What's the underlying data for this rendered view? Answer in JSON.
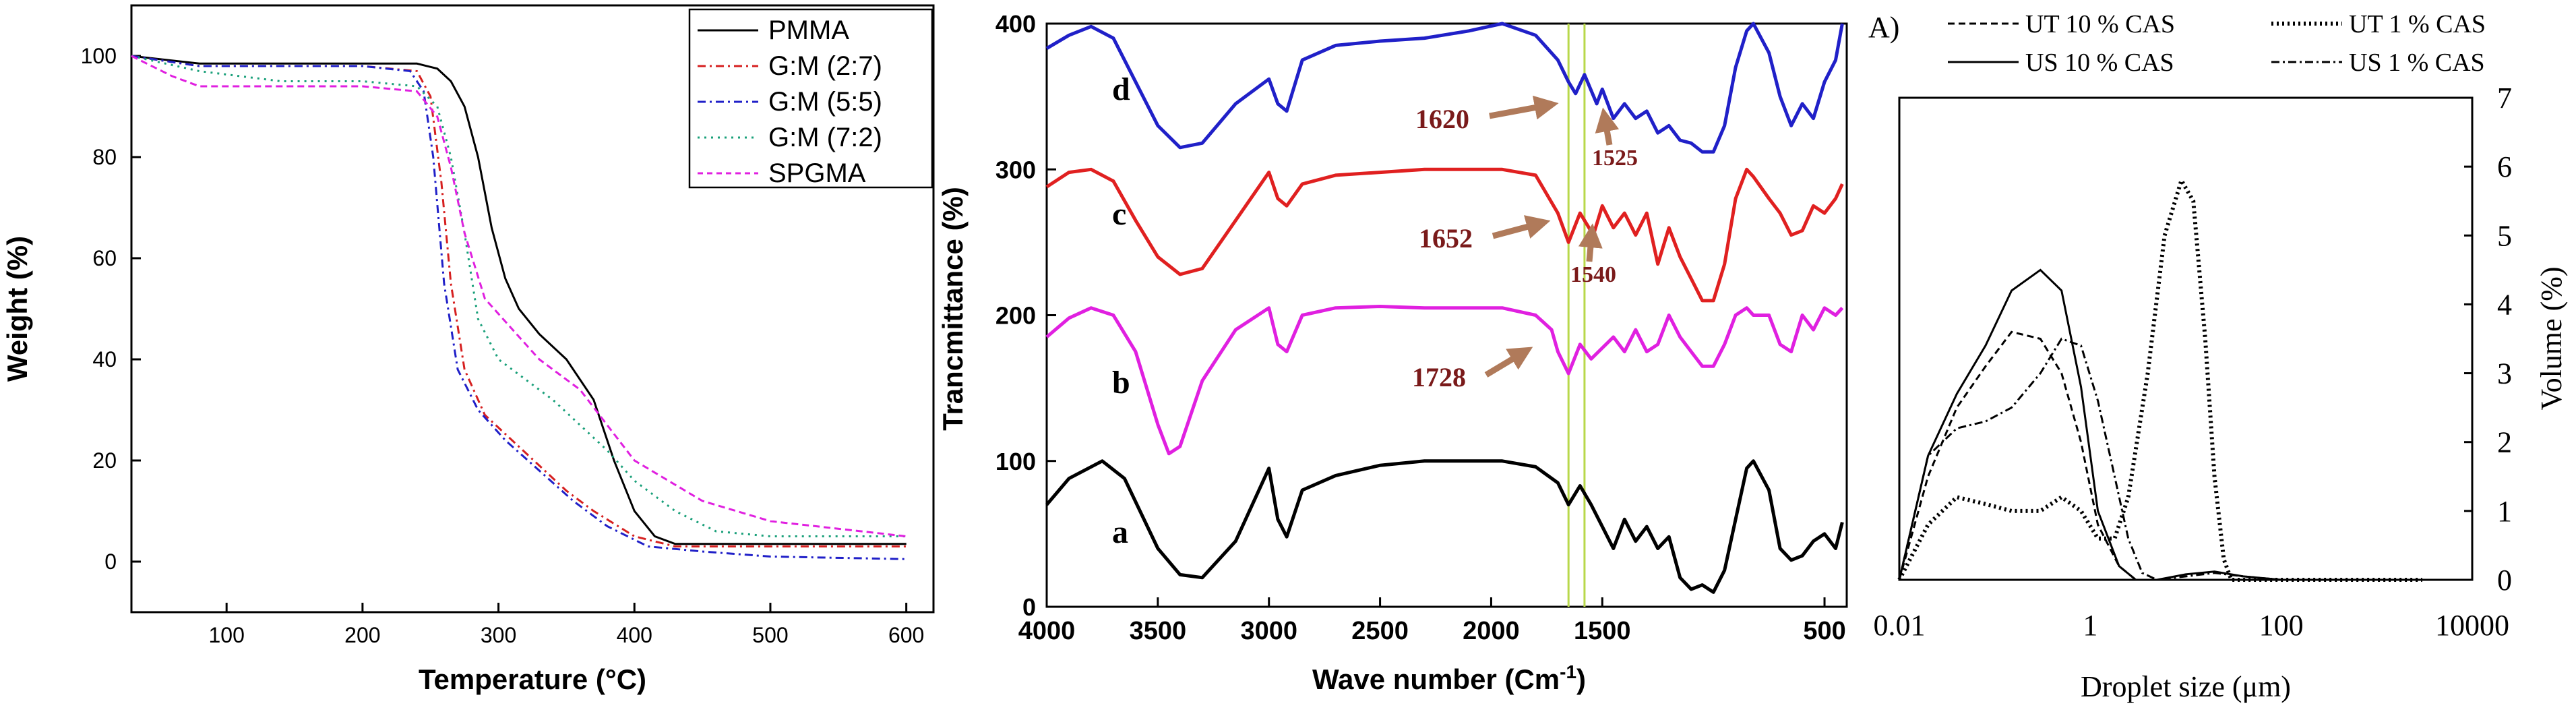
{
  "chart_data": [
    {
      "type": "line",
      "xlabel": "Temperature (°C)",
      "ylabel": "Weight (%)",
      "xlim": [
        30,
        620
      ],
      "ylim": [
        -10,
        110
      ],
      "xticks": [
        100,
        200,
        300,
        400,
        500,
        600
      ],
      "yticks": [
        0,
        20,
        40,
        60,
        80,
        100
      ],
      "legend_position": "top-right",
      "series": [
        {
          "name": "PMMA",
          "color": "#000000",
          "dash": "solid",
          "x": [
            30,
            80,
            150,
            200,
            240,
            255,
            265,
            275,
            285,
            295,
            305,
            315,
            330,
            350,
            370,
            385,
            400,
            415,
            430,
            500,
            600
          ],
          "y": [
            100,
            98.5,
            98.5,
            98.5,
            98.5,
            97.5,
            95,
            90,
            80,
            66,
            56,
            50,
            45,
            40,
            32,
            20,
            10,
            5,
            3.5,
            3.5,
            3.5
          ]
        },
        {
          "name": "G:M (2:7)",
          "color": "#d62020",
          "dash": "dashdot",
          "x": [
            30,
            80,
            150,
            200,
            240,
            250,
            258,
            265,
            275,
            290,
            310,
            330,
            350,
            370,
            400,
            430,
            500,
            600
          ],
          "y": [
            100,
            98,
            98,
            98,
            97,
            92,
            75,
            55,
            38,
            29,
            24,
            19,
            14,
            10,
            5,
            3,
            3,
            3
          ]
        },
        {
          "name": "G:M (5:5)",
          "color": "#2020c8",
          "dash": "dashdot",
          "x": [
            30,
            80,
            150,
            200,
            235,
            245,
            252,
            260,
            270,
            285,
            305,
            330,
            355,
            380,
            410,
            450,
            500,
            600
          ],
          "y": [
            100,
            98,
            98,
            98,
            97,
            93,
            80,
            55,
            38,
            30,
            24,
            18,
            12,
            7,
            3,
            2,
            1,
            0.5
          ]
        },
        {
          "name": "G:M (7:2)",
          "color": "#1aa07a",
          "dash": "dotted",
          "x": [
            30,
            80,
            140,
            200,
            240,
            255,
            265,
            275,
            285,
            300,
            320,
            340,
            360,
            380,
            400,
            430,
            460,
            500,
            600
          ],
          "y": [
            100,
            97,
            95,
            95,
            94,
            90,
            80,
            65,
            48,
            40,
            36,
            32,
            27,
            22,
            16,
            10,
            6,
            5,
            5
          ]
        },
        {
          "name": "SPGMA",
          "color": "#e020e0",
          "dash": "dashed",
          "x": [
            30,
            60,
            80,
            150,
            200,
            240,
            255,
            265,
            275,
            290,
            310,
            330,
            360,
            380,
            400,
            450,
            500,
            600
          ],
          "y": [
            100,
            96,
            94,
            94,
            94,
            93,
            88,
            78,
            65,
            52,
            46,
            40,
            34,
            27,
            20,
            12,
            8,
            5
          ]
        }
      ]
    },
    {
      "type": "line",
      "xlabel": "Wave number (Cm",
      "xlabel_sup": "-1",
      "xlabel_end": ")",
      "ylabel": "Trancmittance (%)",
      "xlim": [
        4000,
        400
      ],
      "ylim": [
        0,
        400
      ],
      "xticks": [
        4000,
        3500,
        3000,
        2500,
        2000,
        1500,
        500
      ],
      "yticks": [
        0,
        100,
        200,
        300,
        400
      ],
      "vlines": [
        1652,
        1580
      ],
      "vline_color": "#b8d84a",
      "arrow_color": "#b07a5a",
      "label_color": "#7a1a1a",
      "annotations": [
        "1620",
        "1525",
        "1652",
        "1540",
        "1728"
      ],
      "series": [
        {
          "name": "a",
          "color": "#000000",
          "x": [
            4000,
            3900,
            3750,
            3650,
            3500,
            3400,
            3300,
            3150,
            3000,
            2960,
            2920,
            2850,
            2700,
            2500,
            2300,
            2100,
            1950,
            1800,
            1700,
            1652,
            1600,
            1550,
            1450,
            1400,
            1350,
            1300,
            1250,
            1200,
            1150,
            1100,
            1050,
            1000,
            950,
            900,
            850,
            820,
            750,
            700,
            650,
            600,
            550,
            500,
            450,
            420
          ],
          "y": [
            70,
            88,
            100,
            88,
            40,
            22,
            20,
            45,
            95,
            60,
            48,
            80,
            90,
            97,
            100,
            100,
            100,
            96,
            85,
            70,
            83,
            70,
            40,
            60,
            45,
            55,
            40,
            48,
            20,
            12,
            15,
            10,
            25,
            60,
            95,
            100,
            80,
            40,
            32,
            35,
            45,
            50,
            40,
            58
          ]
        },
        {
          "name": "b",
          "color": "#e020e0",
          "x": [
            4000,
            3900,
            3800,
            3700,
            3600,
            3500,
            3450,
            3400,
            3300,
            3150,
            3000,
            2960,
            2920,
            2850,
            2700,
            2500,
            2300,
            2100,
            1950,
            1800,
            1728,
            1700,
            1652,
            1600,
            1550,
            1450,
            1400,
            1350,
            1300,
            1250,
            1200,
            1150,
            1100,
            1050,
            1000,
            950,
            900,
            850,
            820,
            750,
            700,
            650,
            600,
            550,
            500,
            450,
            420
          ],
          "y": [
            185,
            198,
            205,
            200,
            175,
            125,
            105,
            110,
            155,
            190,
            205,
            180,
            175,
            200,
            205,
            206,
            205,
            205,
            205,
            200,
            190,
            175,
            160,
            180,
            170,
            185,
            175,
            190,
            175,
            180,
            200,
            185,
            175,
            165,
            165,
            180,
            200,
            205,
            200,
            200,
            180,
            175,
            200,
            190,
            205,
            200,
            205
          ]
        },
        {
          "name": "c",
          "color": "#e02020",
          "x": [
            4000,
            3900,
            3800,
            3700,
            3600,
            3500,
            3400,
            3300,
            3150,
            3000,
            2960,
            2920,
            2850,
            2700,
            2500,
            2300,
            2100,
            1950,
            1800,
            1700,
            1652,
            1600,
            1540,
            1500,
            1450,
            1400,
            1350,
            1300,
            1250,
            1200,
            1150,
            1100,
            1050,
            1000,
            950,
            900,
            850,
            820,
            750,
            700,
            650,
            600,
            550,
            500,
            450,
            420
          ],
          "y": [
            288,
            298,
            300,
            292,
            265,
            240,
            228,
            232,
            265,
            298,
            280,
            275,
            290,
            296,
            298,
            300,
            300,
            300,
            296,
            270,
            250,
            270,
            255,
            275,
            260,
            270,
            255,
            270,
            235,
            260,
            240,
            225,
            210,
            210,
            235,
            280,
            300,
            295,
            280,
            270,
            255,
            258,
            275,
            270,
            280,
            290
          ]
        },
        {
          "name": "d",
          "color": "#2020c8",
          "x": [
            4000,
            3900,
            3800,
            3700,
            3600,
            3500,
            3400,
            3300,
            3150,
            3000,
            2960,
            2920,
            2850,
            2700,
            2500,
            2300,
            2100,
            1950,
            1800,
            1700,
            1652,
            1620,
            1580,
            1525,
            1500,
            1450,
            1400,
            1350,
            1300,
            1250,
            1200,
            1150,
            1100,
            1050,
            1000,
            950,
            900,
            850,
            820,
            750,
            700,
            650,
            600,
            550,
            500,
            450,
            420
          ],
          "y": [
            383,
            392,
            398,
            390,
            360,
            330,
            315,
            318,
            345,
            362,
            345,
            340,
            375,
            385,
            388,
            390,
            395,
            400,
            392,
            375,
            360,
            352,
            365,
            345,
            355,
            335,
            345,
            335,
            340,
            325,
            330,
            320,
            318,
            312,
            312,
            330,
            370,
            395,
            400,
            380,
            350,
            330,
            345,
            335,
            360,
            375,
            400
          ]
        }
      ]
    },
    {
      "type": "line",
      "panel_label": "A)",
      "xlabel": "Droplet size (μm)",
      "ylabel": "Volume (%)",
      "x_scale": "log",
      "xlim": [
        0.01,
        10000
      ],
      "ylim": [
        0,
        7
      ],
      "xticks": [
        "0.01",
        "1",
        "100",
        "10000"
      ],
      "yticks": [
        0,
        1,
        2,
        3,
        4,
        5,
        6,
        7
      ],
      "legend_position": "top",
      "series": [
        {
          "name": "UT 10 % CAS",
          "dash": "dashed",
          "x": [
            0.01,
            0.02,
            0.04,
            0.08,
            0.15,
            0.3,
            0.5,
            0.8,
            1.2,
            2,
            3,
            5,
            10,
            30,
            100,
            1000,
            3000
          ],
          "y": [
            0,
            1.5,
            2.5,
            3.1,
            3.6,
            3.5,
            3.0,
            2.0,
            0.8,
            0.2,
            0,
            0,
            0,
            0,
            0,
            0,
            0
          ]
        },
        {
          "name": "UT 1 % CAS",
          "dash": "dotted",
          "x": [
            0.01,
            0.02,
            0.04,
            0.08,
            0.15,
            0.3,
            0.5,
            0.8,
            1.2,
            1.8,
            2.5,
            4,
            6,
            9,
            12,
            16,
            20,
            25,
            30,
            50,
            100,
            1000,
            3000
          ],
          "y": [
            0,
            0.8,
            1.2,
            1.1,
            1.0,
            1.0,
            1.2,
            1.0,
            0.6,
            0.6,
            1.2,
            3.0,
            5.0,
            5.8,
            5.5,
            3.5,
            1.5,
            0.3,
            0,
            0,
            0,
            0,
            0
          ]
        },
        {
          "name": "US 10 % CAS",
          "dash": "solid",
          "x": [
            0.01,
            0.02,
            0.04,
            0.08,
            0.15,
            0.3,
            0.5,
            0.8,
            1.2,
            2,
            3,
            5,
            10,
            20,
            40,
            100,
            1000,
            3000
          ],
          "y": [
            0,
            1.8,
            2.7,
            3.4,
            4.2,
            4.5,
            4.2,
            2.8,
            1.0,
            0.2,
            0,
            0,
            0.08,
            0.12,
            0.05,
            0,
            0,
            0
          ]
        },
        {
          "name": "US 1 % CAS",
          "dash": "dashdot",
          "x": [
            0.01,
            0.02,
            0.04,
            0.08,
            0.15,
            0.3,
            0.5,
            0.8,
            1.2,
            1.8,
            2.5,
            3.5,
            5,
            10,
            20,
            40,
            100,
            1000,
            3000
          ],
          "y": [
            0,
            1.8,
            2.2,
            2.3,
            2.5,
            3.0,
            3.5,
            3.4,
            2.6,
            1.5,
            0.6,
            0.1,
            0,
            0.05,
            0.1,
            0.05,
            0,
            0,
            0
          ]
        }
      ]
    }
  ]
}
